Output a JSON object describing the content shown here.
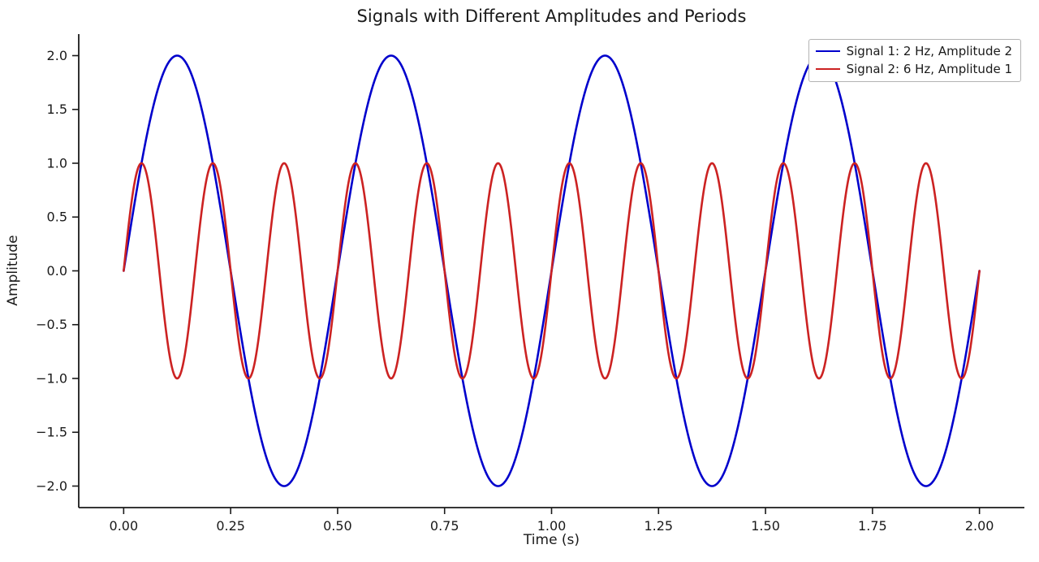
{
  "figure": {
    "background_color": "#ffffff",
    "text_color": "#1a1a1a"
  },
  "chart_data": {
    "type": "line",
    "title": "Signals with Different Amplitudes and Periods",
    "xlabel": "Time (s)",
    "ylabel": "Amplitude",
    "xlim": [
      -0.105,
      2.105
    ],
    "ylim": [
      -2.2,
      2.2
    ],
    "grid": false,
    "xticks": [
      0,
      0.25,
      0.5,
      0.75,
      1,
      1.25,
      1.5,
      1.75,
      2
    ],
    "xtick_labels": [
      "0.00",
      "0.25",
      "0.50",
      "0.75",
      "1.00",
      "1.25",
      "1.50",
      "1.75",
      "2.00"
    ],
    "yticks": [
      -2,
      -1.5,
      -1,
      -0.5,
      0,
      0.5,
      1,
      1.5,
      2
    ],
    "ytick_labels": [
      "−2.0",
      "−1.5",
      "−1.0",
      "−0.5",
      "0.0",
      "0.5",
      "1.0",
      "1.5",
      "2.0"
    ],
    "legend_position": "upper right",
    "series": [
      {
        "name": "Signal 1: 2 Hz, Amplitude 2",
        "waveform": "sine",
        "frequency_hz": 2,
        "amplitude": 2,
        "phase": 0,
        "t_start": 0,
        "t_end": 2,
        "color": "#0000cc",
        "linewidth": 2.6
      },
      {
        "name": "Signal 2: 6 Hz, Amplitude 1",
        "waveform": "sine",
        "frequency_hz": 6,
        "amplitude": 1,
        "phase": 0,
        "t_start": 0,
        "t_end": 2,
        "color": "#cc2222",
        "linewidth": 2.6
      }
    ]
  }
}
